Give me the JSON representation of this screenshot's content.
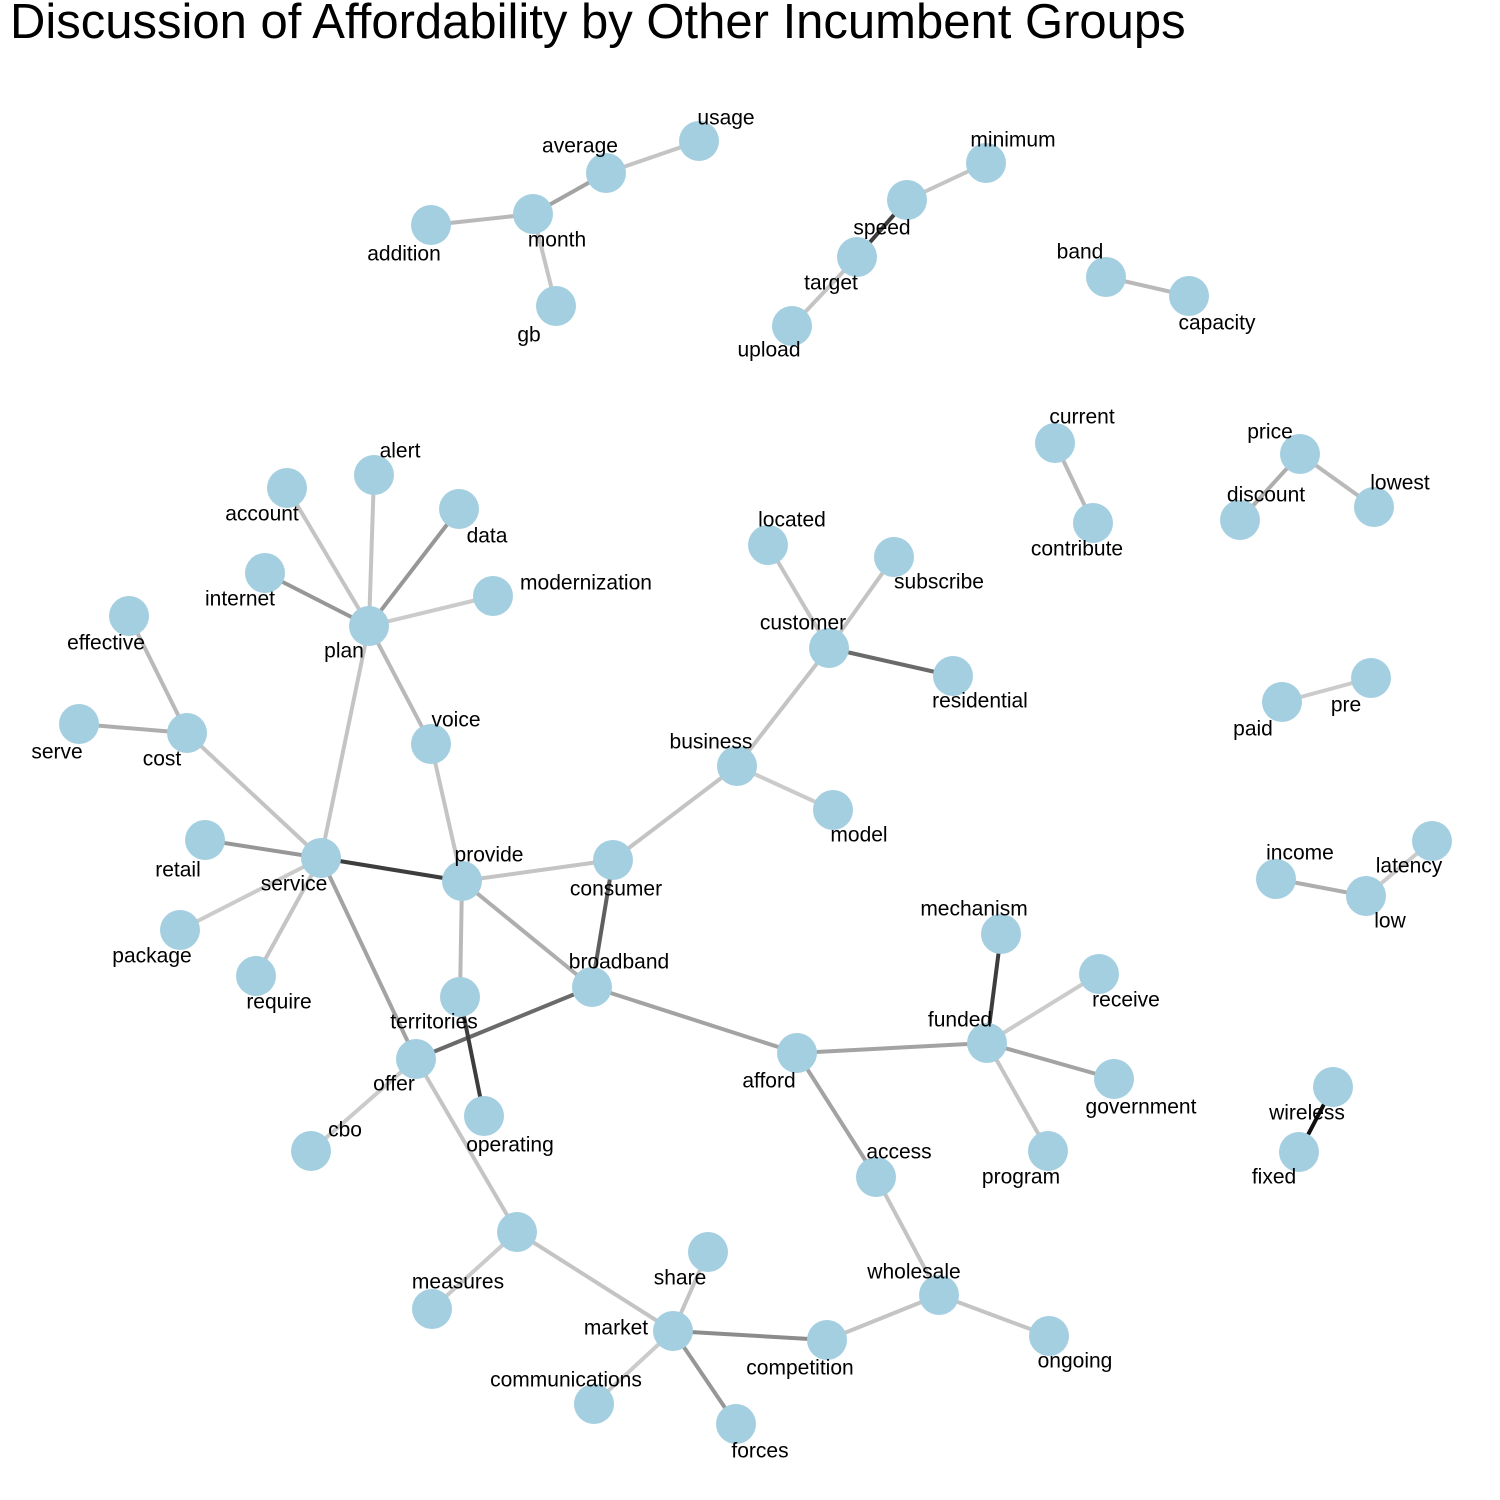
{
  "title": "Discussion of Affordability by Other Incumbent Groups",
  "colors": {
    "node": "#a3cfe0",
    "background": "#ffffff"
  },
  "nodes": [
    {
      "id": "usage",
      "label": "usage"
    },
    {
      "id": "average",
      "label": "average"
    },
    {
      "id": "month",
      "label": "month"
    },
    {
      "id": "addition",
      "label": "addition"
    },
    {
      "id": "gb",
      "label": "gb"
    },
    {
      "id": "minimum",
      "label": "minimum"
    },
    {
      "id": "speed",
      "label": "speed"
    },
    {
      "id": "target",
      "label": "target"
    },
    {
      "id": "upload",
      "label": "upload"
    },
    {
      "id": "band",
      "label": "band"
    },
    {
      "id": "capacity",
      "label": "capacity"
    },
    {
      "id": "current",
      "label": "current"
    },
    {
      "id": "contribute",
      "label": "contribute"
    },
    {
      "id": "price",
      "label": "price"
    },
    {
      "id": "discount",
      "label": "discount"
    },
    {
      "id": "lowest",
      "label": "lowest"
    },
    {
      "id": "alert",
      "label": "alert"
    },
    {
      "id": "account",
      "label": "account"
    },
    {
      "id": "data",
      "label": "data"
    },
    {
      "id": "internet",
      "label": "internet"
    },
    {
      "id": "modernization",
      "label": "modernization"
    },
    {
      "id": "plan",
      "label": "plan"
    },
    {
      "id": "effective",
      "label": "effective"
    },
    {
      "id": "serve",
      "label": "serve"
    },
    {
      "id": "cost",
      "label": "cost"
    },
    {
      "id": "voice",
      "label": "voice"
    },
    {
      "id": "located",
      "label": "located"
    },
    {
      "id": "subscribe",
      "label": "subscribe"
    },
    {
      "id": "customer",
      "label": "customer"
    },
    {
      "id": "residential",
      "label": "residential"
    },
    {
      "id": "business",
      "label": "business"
    },
    {
      "id": "model",
      "label": "model"
    },
    {
      "id": "paid",
      "label": "paid"
    },
    {
      "id": "pre",
      "label": "pre"
    },
    {
      "id": "retail",
      "label": "retail"
    },
    {
      "id": "service",
      "label": "service"
    },
    {
      "id": "provide",
      "label": "provide"
    },
    {
      "id": "consumer",
      "label": "consumer"
    },
    {
      "id": "package",
      "label": "package"
    },
    {
      "id": "require",
      "label": "require"
    },
    {
      "id": "broadband",
      "label": "broadband"
    },
    {
      "id": "territories",
      "label": "territories"
    },
    {
      "id": "offer",
      "label": "offer"
    },
    {
      "id": "cbo",
      "label": "cbo"
    },
    {
      "id": "operating",
      "label": "operating"
    },
    {
      "id": "afford",
      "label": "afford"
    },
    {
      "id": "mechanism",
      "label": "mechanism"
    },
    {
      "id": "receive",
      "label": "receive"
    },
    {
      "id": "funded",
      "label": "funded"
    },
    {
      "id": "government",
      "label": "government"
    },
    {
      "id": "program",
      "label": "program"
    },
    {
      "id": "access",
      "label": "access"
    },
    {
      "id": "income",
      "label": "income"
    },
    {
      "id": "latency",
      "label": "latency"
    },
    {
      "id": "low",
      "label": "low"
    },
    {
      "id": "wireless",
      "label": "wireless"
    },
    {
      "id": "fixed",
      "label": "fixed"
    },
    {
      "id": "measures",
      "label": "measures"
    },
    {
      "id": "measures_top",
      "label": ""
    },
    {
      "id": "share",
      "label": "share"
    },
    {
      "id": "market",
      "label": "market"
    },
    {
      "id": "communications",
      "label": "communications"
    },
    {
      "id": "forces",
      "label": "forces"
    },
    {
      "id": "competition",
      "label": "competition"
    },
    {
      "id": "wholesale",
      "label": "wholesale"
    },
    {
      "id": "ongoing",
      "label": "ongoing"
    }
  ],
  "edges": [
    {
      "source": "usage",
      "target": "average",
      "shade": 0.15
    },
    {
      "source": "average",
      "target": "month",
      "shade": 0.3
    },
    {
      "source": "addition",
      "target": "month",
      "shade": 0.2
    },
    {
      "source": "month",
      "target": "gb",
      "shade": 0.15
    },
    {
      "source": "minimum",
      "target": "speed",
      "shade": 0.15
    },
    {
      "source": "speed",
      "target": "target",
      "shade": 0.75
    },
    {
      "source": "target",
      "target": "upload",
      "shade": 0.15
    },
    {
      "source": "band",
      "target": "capacity",
      "shade": 0.2
    },
    {
      "source": "current",
      "target": "contribute",
      "shade": 0.2
    },
    {
      "source": "price",
      "target": "discount",
      "shade": 0.25
    },
    {
      "source": "price",
      "target": "lowest",
      "shade": 0.2
    },
    {
      "source": "alert",
      "target": "plan",
      "shade": 0.15
    },
    {
      "source": "account",
      "target": "plan",
      "shade": 0.15
    },
    {
      "source": "data",
      "target": "plan",
      "shade": 0.35
    },
    {
      "source": "internet",
      "target": "plan",
      "shade": 0.35
    },
    {
      "source": "modernization",
      "target": "plan",
      "shade": 0.12
    },
    {
      "source": "plan",
      "target": "voice",
      "shade": 0.2
    },
    {
      "source": "plan",
      "target": "service",
      "shade": 0.15
    },
    {
      "source": "effective",
      "target": "cost",
      "shade": 0.2
    },
    {
      "source": "serve",
      "target": "cost",
      "shade": 0.25
    },
    {
      "source": "cost",
      "target": "service",
      "shade": 0.15
    },
    {
      "source": "voice",
      "target": "provide",
      "shade": 0.15
    },
    {
      "source": "located",
      "target": "customer",
      "shade": 0.15
    },
    {
      "source": "subscribe",
      "target": "customer",
      "shade": 0.15
    },
    {
      "source": "customer",
      "target": "residential",
      "shade": 0.55
    },
    {
      "source": "customer",
      "target": "business",
      "shade": 0.15
    },
    {
      "source": "business",
      "target": "model",
      "shade": 0.12
    },
    {
      "source": "business",
      "target": "consumer",
      "shade": 0.15
    },
    {
      "source": "paid",
      "target": "pre",
      "shade": 0.12
    },
    {
      "source": "retail",
      "target": "service",
      "shade": 0.35
    },
    {
      "source": "service",
      "target": "provide",
      "shade": 0.75
    },
    {
      "source": "service",
      "target": "package",
      "shade": 0.12
    },
    {
      "source": "service",
      "target": "require",
      "shade": 0.15
    },
    {
      "source": "service",
      "target": "offer",
      "shade": 0.3
    },
    {
      "source": "provide",
      "target": "consumer",
      "shade": 0.15
    },
    {
      "source": "provide",
      "target": "territories",
      "shade": 0.2
    },
    {
      "source": "provide",
      "target": "broadband",
      "shade": 0.25
    },
    {
      "source": "consumer",
      "target": "broadband",
      "shade": 0.6
    },
    {
      "source": "broadband",
      "target": "offer",
      "shade": 0.55
    },
    {
      "source": "broadband",
      "target": "afford",
      "shade": 0.3
    },
    {
      "source": "territories",
      "target": "operating",
      "shade": 0.75
    },
    {
      "source": "offer",
      "target": "cbo",
      "shade": 0.12
    },
    {
      "source": "offer",
      "target": "measures_top",
      "shade": 0.15
    },
    {
      "source": "afford",
      "target": "funded",
      "shade": 0.3
    },
    {
      "source": "afford",
      "target": "access",
      "shade": 0.3
    },
    {
      "source": "mechanism",
      "target": "funded",
      "shade": 0.75
    },
    {
      "source": "receive",
      "target": "funded",
      "shade": 0.12
    },
    {
      "source": "funded",
      "target": "government",
      "shade": 0.3
    },
    {
      "source": "funded",
      "target": "program",
      "shade": 0.15
    },
    {
      "source": "access",
      "target": "wholesale",
      "shade": 0.15
    },
    {
      "source": "income",
      "target": "low",
      "shade": 0.25
    },
    {
      "source": "latency",
      "target": "low",
      "shade": 0.12
    },
    {
      "source": "wireless",
      "target": "fixed",
      "shade": 0.95
    },
    {
      "source": "measures_top",
      "target": "measures",
      "shade": 0.12
    },
    {
      "source": "measures_top",
      "target": "market",
      "shade": 0.15
    },
    {
      "source": "share",
      "target": "market",
      "shade": 0.15
    },
    {
      "source": "market",
      "target": "communications",
      "shade": 0.12
    },
    {
      "source": "market",
      "target": "forces",
      "shade": 0.35
    },
    {
      "source": "market",
      "target": "competition",
      "shade": 0.4
    },
    {
      "source": "competition",
      "target": "wholesale",
      "shade": 0.15
    },
    {
      "source": "wholesale",
      "target": "ongoing",
      "shade": 0.15
    }
  ]
}
